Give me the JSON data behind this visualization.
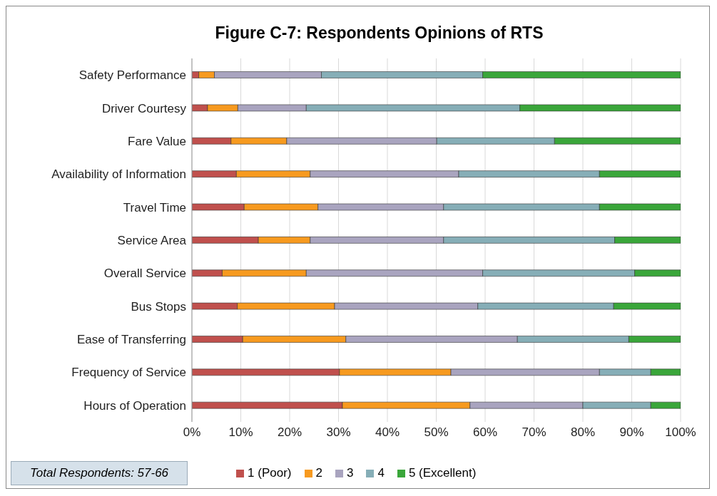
{
  "chart_data": {
    "type": "bar",
    "orientation": "horizontal",
    "stacked": true,
    "title": "Figure C-7: Respondents Opinions of RTS",
    "categories": [
      "Safety Performance",
      "Driver Courtesy",
      "Fare Value",
      "Availability of Information",
      "Travel Time",
      "Service Area",
      "Overall Service",
      "Bus Stops",
      "Ease of Transferring",
      "Frequency of Service",
      "Hours of Operation"
    ],
    "series": [
      {
        "name": "1 (Poor)",
        "color": "#c0504d",
        "values": [
          1.4,
          3.2,
          8.0,
          9.1,
          10.7,
          13.6,
          6.2,
          9.3,
          10.4,
          30.2,
          30.8
        ]
      },
      {
        "name": "2",
        "color": "#f79a1f",
        "values": [
          3.2,
          6.2,
          11.4,
          15.1,
          15.1,
          10.6,
          17.2,
          19.9,
          21.1,
          22.8,
          26.1
        ]
      },
      {
        "name": "3",
        "color": "#a9a4bf",
        "values": [
          21.9,
          14.0,
          30.7,
          30.4,
          25.7,
          27.3,
          36.1,
          29.3,
          35.1,
          30.4,
          23.1
        ]
      },
      {
        "name": "4",
        "color": "#86aeb7",
        "values": [
          33.0,
          43.7,
          24.1,
          28.8,
          31.9,
          35.0,
          31.1,
          27.8,
          22.8,
          10.5,
          13.9
        ]
      },
      {
        "name": "5 (Excellent)",
        "color": "#3aa63a",
        "values": [
          40.5,
          32.9,
          25.8,
          16.6,
          16.6,
          13.5,
          9.4,
          13.7,
          10.6,
          6.1,
          6.1
        ]
      }
    ],
    "xlim": [
      0,
      100
    ],
    "xticks": [
      {
        "value": 0,
        "label": "0%"
      },
      {
        "value": 10,
        "label": "10%"
      },
      {
        "value": 20,
        "label": "20%"
      },
      {
        "value": 30,
        "label": "30%"
      },
      {
        "value": 40,
        "label": "40%"
      },
      {
        "value": 50,
        "label": "50%"
      },
      {
        "value": 60,
        "label": "60%"
      },
      {
        "value": 70,
        "label": "70%"
      },
      {
        "value": 80,
        "label": "80%"
      },
      {
        "value": 90,
        "label": "90%"
      },
      {
        "value": 100,
        "label": "100%"
      }
    ],
    "grid": "x",
    "legend": "bottom",
    "annotations": [
      "Total Respondents: 57-66"
    ]
  }
}
